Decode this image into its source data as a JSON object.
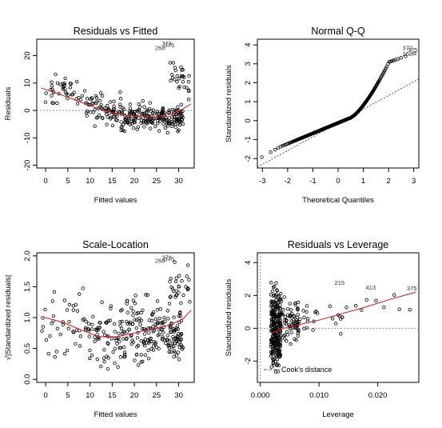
{
  "chart_data": [
    {
      "id": "rvf",
      "type": "scatter",
      "title": "Residuals vs Fitted",
      "xlabel": "Fitted values",
      "ylabel": "Residuals",
      "xlim": [
        -2,
        33.5
      ],
      "ylim": [
        -21,
        26
      ],
      "xticks": [
        0,
        5,
        10,
        15,
        20,
        25,
        30
      ],
      "yticks": [
        -20,
        -10,
        0,
        10,
        20
      ],
      "reference_line": 0,
      "point_labels": [
        {
          "text": "268",
          "x": 25.8,
          "y": 22.9
        },
        {
          "text": "372",
          "x": 27.3,
          "y": 24.6
        },
        {
          "text": "375",
          "x": 27.9,
          "y": 24.0
        }
      ],
      "smooth": [
        [
          -1,
          8.2
        ],
        [
          3,
          6.0
        ],
        [
          7,
          3.6
        ],
        [
          11,
          1.2
        ],
        [
          15,
          -0.8
        ],
        [
          19,
          -2.0
        ],
        [
          23,
          -2.4
        ],
        [
          26,
          -2.3
        ],
        [
          28.5,
          -1.3
        ],
        [
          31,
          0.6
        ],
        [
          32.8,
          2.4
        ]
      ],
      "point_clusters": [
        {
          "n": 40,
          "x": [
            -1,
            9
          ],
          "y_center": 7.0,
          "y_spread": 6
        },
        {
          "n": 70,
          "x": [
            9,
            17
          ],
          "y_center": 0.5,
          "y_spread": 6
        },
        {
          "n": 200,
          "x": [
            17,
            31
          ],
          "y_center": -2.5,
          "y_spread": 5
        },
        {
          "n": 28,
          "x": [
            28,
            32.5
          ],
          "y_center": 12,
          "y_spread": 7
        }
      ]
    },
    {
      "id": "qq",
      "type": "scatter",
      "title": "Normal Q-Q",
      "xlabel": "Theoretical Quantiles",
      "ylabel": "Standardized residuals",
      "xlim": [
        -3.2,
        3.2
      ],
      "ylim": [
        -2.5,
        4.3
      ],
      "xticks": [
        -3,
        -2,
        -1,
        0,
        1,
        2,
        3
      ],
      "yticks": [
        -2,
        -1,
        0,
        1,
        2,
        3,
        4
      ],
      "reference_line": [
        [
          -3.2,
          -2.45
        ],
        [
          3.2,
          2.2
        ]
      ],
      "point_labels": [
        {
          "text": "372",
          "x": 2.75,
          "y": 3.85
        },
        {
          "text": "375",
          "x": 2.95,
          "y": 3.75
        },
        {
          "text": "268",
          "x": 2.75,
          "y": 3.55
        }
      ],
      "n_points": 400
    },
    {
      "id": "sl",
      "type": "scatter",
      "title": "Scale-Location",
      "xlabel": "Fitted values",
      "ylabel": "√|Standardized residuals|",
      "xlim": [
        -2,
        33.5
      ],
      "ylim": [
        -0.05,
        2.05
      ],
      "xticks": [
        0,
        5,
        10,
        15,
        20,
        25,
        30
      ],
      "yticks": [
        0.0,
        0.5,
        1.0,
        1.5,
        2.0
      ],
      "point_labels": [
        {
          "text": "268",
          "x": 25.8,
          "y": 1.93
        },
        {
          "text": "372",
          "x": 27.3,
          "y": 1.98
        },
        {
          "text": "375",
          "x": 27.9,
          "y": 1.95
        }
      ],
      "smooth": [
        [
          -1,
          1.02
        ],
        [
          4,
          0.92
        ],
        [
          8,
          0.8
        ],
        [
          12,
          0.69
        ],
        [
          16,
          0.69
        ],
        [
          20,
          0.75
        ],
        [
          24,
          0.82
        ],
        [
          28,
          0.88
        ],
        [
          31,
          0.98
        ],
        [
          32.8,
          1.12
        ]
      ],
      "point_clusters": [
        {
          "n": 40,
          "x": [
            -1,
            9
          ],
          "y_center": 0.9,
          "y_spread": 0.7
        },
        {
          "n": 70,
          "x": [
            9,
            17
          ],
          "y_center": 0.7,
          "y_spread": 0.55
        },
        {
          "n": 200,
          "x": [
            17,
            31
          ],
          "y_center": 0.75,
          "y_spread": 0.55
        },
        {
          "n": 28,
          "x": [
            28,
            32.5
          ],
          "y_center": 1.5,
          "y_spread": 0.4
        }
      ]
    },
    {
      "id": "rvl",
      "type": "scatter",
      "title": "Residuals vs Leverage",
      "xlabel": "Leverage",
      "ylabel": "Standardized residuals",
      "xlim": [
        -0.0005,
        0.027
      ],
      "ylim": [
        -3.3,
        4.6
      ],
      "xticks": [
        0.0,
        0.01,
        0.02
      ],
      "xtick_labels": [
        "0.000",
        "0.010",
        "0.020"
      ],
      "yticks": [
        -2,
        0,
        2,
        4
      ],
      "reference_line": 0,
      "legend": "Cook's distance",
      "legend_position": "bottom-left",
      "point_labels": [
        {
          "text": "215",
          "x": 0.0135,
          "y": 2.8
        },
        {
          "text": "413",
          "x": 0.0188,
          "y": 2.5
        },
        {
          "text": "375",
          "x": 0.0258,
          "y": 2.45
        }
      ],
      "smooth": [
        [
          0.0018,
          -0.3
        ],
        [
          0.004,
          0.0
        ],
        [
          0.007,
          0.25
        ],
        [
          0.01,
          0.5
        ],
        [
          0.014,
          0.9
        ],
        [
          0.018,
          1.3
        ],
        [
          0.022,
          1.75
        ],
        [
          0.0265,
          2.2
        ]
      ],
      "point_clusters": [
        {
          "n": 260,
          "x": [
            0.0018,
            0.0035
          ],
          "y_center": 0,
          "y_spread": 2.5
        },
        {
          "n": 70,
          "x": [
            0.0035,
            0.0065
          ],
          "y_center": 0.5,
          "y_spread": 1.6
        },
        {
          "n": 25,
          "x": [
            0.0065,
            0.016
          ],
          "y_center": 0.6,
          "y_spread": 1.0
        },
        {
          "n": 8,
          "x": [
            0.016,
            0.026
          ],
          "y_center": 1.5,
          "y_spread": 0.8
        }
      ]
    }
  ]
}
